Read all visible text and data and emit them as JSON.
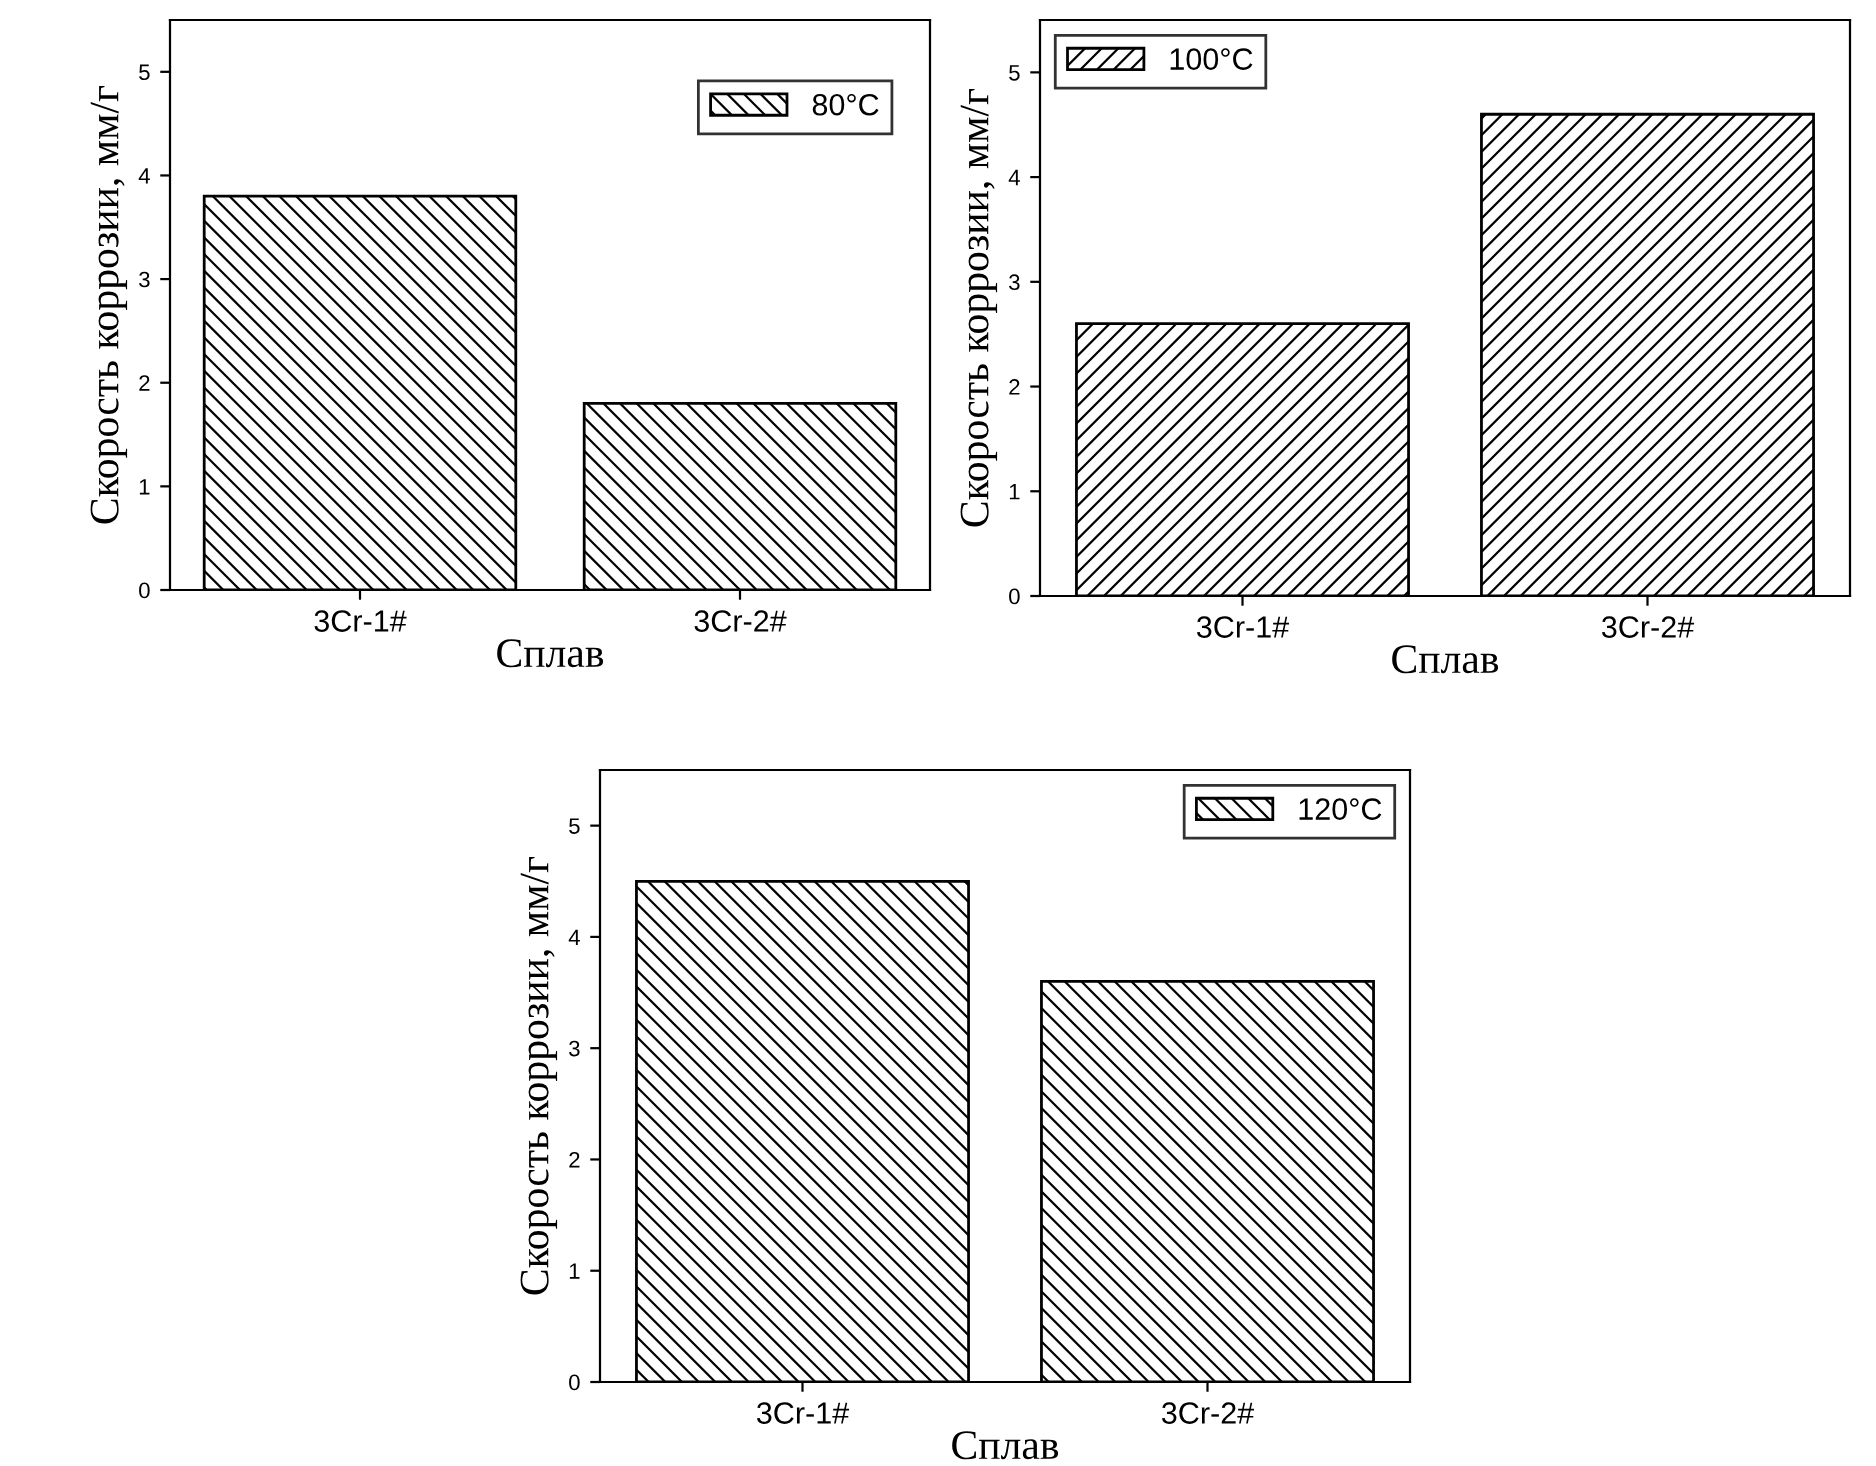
{
  "chart_data": [
    {
      "type": "bar",
      "xlabel": "Сплав",
      "ylabel": "Скорость коррозии, мм/г",
      "categories": [
        "3Cr-1#",
        "3Cr-2#"
      ],
      "series": [
        {
          "name": "80°C",
          "color": "#000000",
          "values": [
            3.8,
            1.8
          ]
        }
      ],
      "ylim": [
        0,
        5.5
      ],
      "yticks": [
        0,
        1,
        2,
        3,
        4,
        5
      ],
      "grid": false,
      "legend": "top right"
    },
    {
      "type": "bar",
      "xlabel": "Сплав",
      "ylabel": "Скорость коррозии, мм/г",
      "categories": [
        "3Cr-1#",
        "3Cr-2#"
      ],
      "series": [
        {
          "name": "100°C",
          "color": "#000000",
          "values": [
            2.6,
            4.6
          ]
        }
      ],
      "ylim": [
        0,
        5.5
      ],
      "yticks": [
        0,
        1,
        2,
        3,
        4,
        5
      ],
      "grid": false,
      "legend": "top left"
    },
    {
      "type": "bar",
      "xlabel": "Сплав",
      "ylabel": "Скорость коррозии, мм/г",
      "categories": [
        "3Cr-1#",
        "3Cr-2#"
      ],
      "series": [
        {
          "name": "120°C",
          "color": "#000000",
          "values": [
            4.5,
            3.6
          ]
        }
      ],
      "ylim": [
        0,
        5.5
      ],
      "yticks": [
        0,
        1,
        2,
        3,
        4,
        5
      ],
      "grid": false,
      "legend": "top right"
    }
  ]
}
